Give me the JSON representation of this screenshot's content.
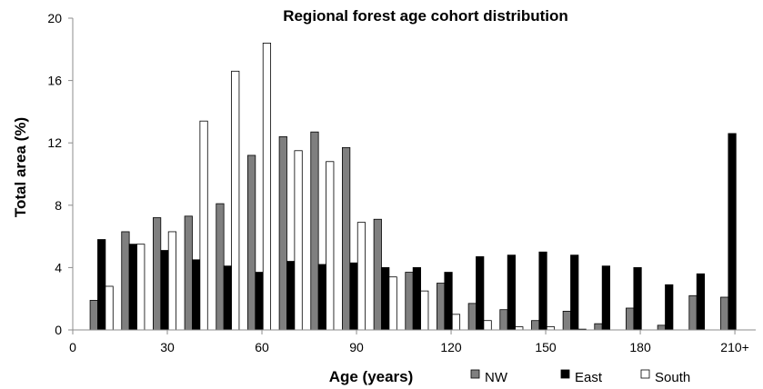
{
  "chart_data": {
    "type": "bar",
    "title": "Regional forest age cohort distribution",
    "xlabel": "Age (years)",
    "ylabel": "Total area (%)",
    "ylim": [
      0,
      20
    ],
    "yticks": [
      "0",
      "4",
      "8",
      "12",
      "16",
      "20"
    ],
    "xticks": [
      "0",
      "30",
      "60",
      "90",
      "120",
      "150",
      "180",
      "210+"
    ],
    "categories": [
      "10",
      "20",
      "30",
      "40",
      "50",
      "60",
      "70",
      "80",
      "90",
      "100",
      "110",
      "120",
      "130",
      "140",
      "150",
      "160",
      "170",
      "180",
      "190",
      "200",
      "210+"
    ],
    "series": [
      {
        "name": "NW",
        "color": "#7f7f7f",
        "values": [
          1.9,
          6.3,
          7.2,
          7.3,
          8.1,
          11.2,
          12.4,
          12.7,
          11.7,
          7.1,
          3.7,
          3.0,
          1.7,
          1.3,
          0.6,
          1.2,
          0.4,
          1.4,
          0.3,
          2.2,
          2.1
        ]
      },
      {
        "name": "East",
        "color": "#000000",
        "values": [
          5.8,
          5.5,
          5.1,
          4.5,
          4.1,
          3.7,
          4.4,
          4.2,
          4.3,
          4.0,
          4.0,
          3.7,
          4.7,
          4.8,
          5.0,
          4.8,
          4.1,
          4.0,
          2.9,
          3.6,
          12.6
        ]
      },
      {
        "name": "South",
        "color": "#ffffff",
        "values": [
          2.8,
          5.5,
          6.3,
          13.4,
          16.6,
          18.4,
          11.5,
          10.8,
          6.9,
          3.4,
          2.5,
          1.0,
          0.6,
          0.2,
          0.2,
          0.05,
          0,
          0,
          0,
          0,
          0
        ]
      }
    ],
    "legend_position": "bottom",
    "grid": false
  }
}
